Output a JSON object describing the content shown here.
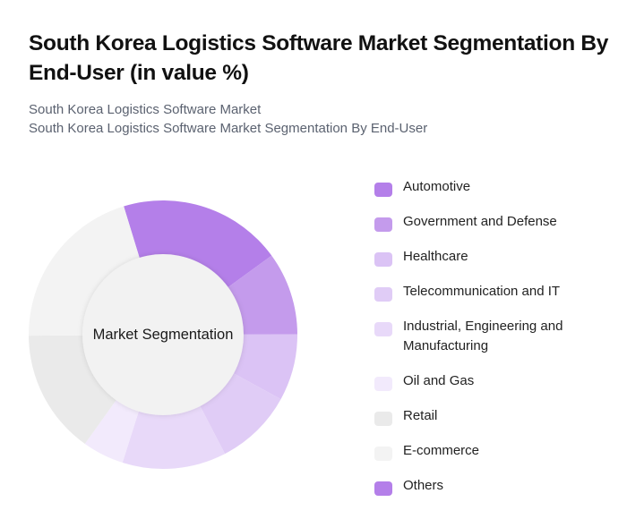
{
  "header": {
    "title": "South Korea Logistics Software Market Segmentation By End-User (in value %)",
    "subtitle_line1": "South Korea Logistics Software Market",
    "subtitle_line2": "South Korea Logistics Software Market Segmentation By End-User"
  },
  "chart": {
    "center_label": "Market Segmentation"
  },
  "legend": [
    {
      "label": "Automotive",
      "color": "#b47fe9"
    },
    {
      "label": "Government and Defense",
      "color": "#c49bec"
    },
    {
      "label": "Healthcare",
      "color": "#dbc3f5"
    },
    {
      "label": "Telecommunication and IT",
      "color": "#e0ccf6"
    },
    {
      "label": "Industrial, Engineering and Manufacturing",
      "color": "#e8d9f9"
    },
    {
      "label": "Oil and Gas",
      "color": "#f2eafc"
    },
    {
      "label": "Retail",
      "color": "#eaeaea"
    },
    {
      "label": "E-commerce",
      "color": "#f3f3f3"
    },
    {
      "label": "Others",
      "color": "#b47fe9"
    }
  ],
  "chart_data": {
    "type": "pie",
    "title": "South Korea Logistics Software Market Segmentation By End-User (in value %)",
    "subtitle": "South Korea Logistics Software Market Segmentation By End-User",
    "center_label": "Market Segmentation",
    "categories": [
      "Automotive",
      "Government and Defense",
      "Healthcare",
      "Telecommunication and IT",
      "Industrial, Engineering and Manufacturing",
      "Oil and Gas",
      "Retail",
      "E-commerce",
      "Others"
    ],
    "values": [
      19.7,
      10,
      8,
      9.4,
      12.5,
      5,
      15,
      20.4,
      0
    ],
    "colors": [
      "#b47fe9",
      "#c49bec",
      "#dbc3f5",
      "#e0ccf6",
      "#e8d9f9",
      "#f2eafc",
      "#eaeaea",
      "#f3f3f3",
      "#b47fe9"
    ],
    "start_angle_deg": -17,
    "donut": true,
    "legend_position": "right"
  }
}
